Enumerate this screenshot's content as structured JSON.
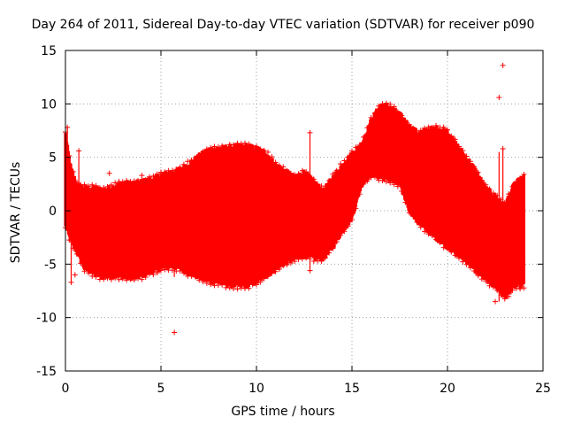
{
  "chart_data": {
    "type": "scatter",
    "title": "Day 264 of 2011, Sidereal Day-to-day VTEC variation (SDTVAR) for receiver p090",
    "xlabel": "GPS time / hours",
    "ylabel": "SDTVAR / TECUs",
    "xlim": [
      0,
      25
    ],
    "ylim": [
      -15,
      15
    ],
    "xticks": [
      0,
      5,
      10,
      15,
      20,
      25
    ],
    "yticks": [
      -15,
      -10,
      -5,
      0,
      5,
      10,
      15
    ],
    "grid": true,
    "marker": "+",
    "color": "#ff0000",
    "series": [
      {
        "name": "p090",
        "envelope_hours": [
          0.0,
          0.3,
          0.6,
          1.0,
          1.5,
          2.0,
          2.5,
          3.0,
          3.5,
          4.0,
          4.5,
          5.0,
          5.5,
          6.0,
          6.5,
          7.0,
          7.5,
          8.0,
          8.5,
          9.0,
          9.5,
          10.0,
          10.5,
          11.0,
          11.5,
          12.0,
          12.5,
          13.0,
          13.5,
          14.0,
          14.5,
          15.0,
          15.5,
          16.0,
          16.5,
          17.0,
          17.5,
          18.0,
          18.5,
          19.0,
          19.5,
          20.0,
          20.5,
          21.0,
          21.5,
          22.0,
          22.5,
          23.0,
          23.5,
          24.0
        ],
        "envelope_upper": [
          7.2,
          4.0,
          2.5,
          2.2,
          2.2,
          2.0,
          2.3,
          2.7,
          2.6,
          2.8,
          3.0,
          3.4,
          3.7,
          3.9,
          4.5,
          5.2,
          5.8,
          5.9,
          6.0,
          6.1,
          6.1,
          5.9,
          5.5,
          4.4,
          3.8,
          3.2,
          3.7,
          2.8,
          1.9,
          3.2,
          4.4,
          5.4,
          6.3,
          8.5,
          10.0,
          9.8,
          9.1,
          8.0,
          7.3,
          7.7,
          7.8,
          7.5,
          6.2,
          5.0,
          3.8,
          2.2,
          1.4,
          0.6,
          2.6,
          3.2
        ],
        "envelope_lower": [
          -1.5,
          -3.0,
          -4.0,
          -5.5,
          -6.0,
          -6.3,
          -6.2,
          -6.3,
          -6.4,
          -6.2,
          -5.8,
          -5.5,
          -5.3,
          -5.5,
          -6.0,
          -6.3,
          -6.7,
          -6.8,
          -7.0,
          -7.1,
          -7.1,
          -6.8,
          -6.2,
          -5.6,
          -5.0,
          -4.6,
          -4.3,
          -4.5,
          -4.6,
          -3.5,
          -2.0,
          -0.8,
          2.3,
          3.3,
          3.0,
          2.8,
          2.3,
          0.0,
          -1.3,
          -2.0,
          -2.8,
          -3.5,
          -4.2,
          -4.8,
          -5.8,
          -6.5,
          -7.2,
          -8.2,
          -7.2,
          -7.0
        ],
        "outliers": [
          {
            "x": 5.7,
            "y": -11.4
          },
          {
            "x": 22.9,
            "y": 13.6
          },
          {
            "x": 22.7,
            "y": 10.6
          },
          {
            "x": 22.9,
            "y": 5.8
          },
          {
            "x": 0.1,
            "y": 7.8
          },
          {
            "x": 0.7,
            "y": 5.6
          },
          {
            "x": 4.0,
            "y": 3.3
          },
          {
            "x": 4.8,
            "y": -5.7
          },
          {
            "x": 2.3,
            "y": 3.5
          },
          {
            "x": 12.8,
            "y": 7.3
          },
          {
            "x": 12.8,
            "y": -5.6
          },
          {
            "x": 5.0,
            "y": 3.6
          },
          {
            "x": 22.5,
            "y": -8.5
          },
          {
            "x": 0.3,
            "y": -6.7
          },
          {
            "x": 0.5,
            "y": -6.0
          }
        ]
      }
    ]
  }
}
